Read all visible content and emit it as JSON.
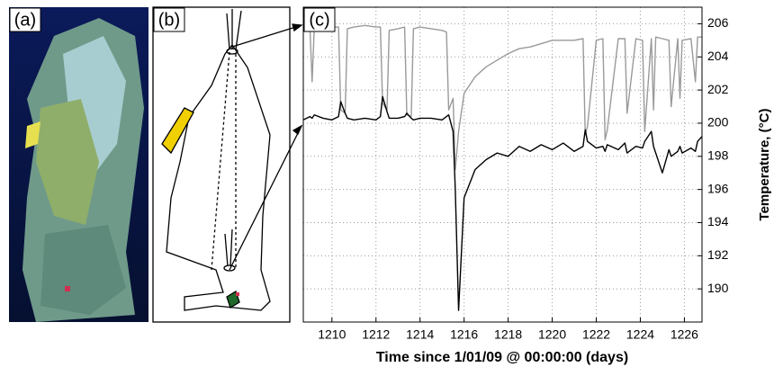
{
  "panels": [
    "(a)",
    "(b)",
    "(c)"
  ],
  "chart_data": {
    "type": "line",
    "xlabel": "Time since 1/01/09 @ 00:00:00 (days)",
    "ylabel": "Temperature, (°C)",
    "xlim": [
      1208.7,
      1226.8
    ],
    "ylim": [
      188,
      207
    ],
    "xticks": [
      1210,
      1212,
      1214,
      1216,
      1218,
      1220,
      1222,
      1224,
      1226
    ],
    "yticks": [
      190,
      192,
      194,
      196,
      198,
      200,
      202,
      204,
      206
    ],
    "grid": true,
    "x": [
      1208.7,
      1209.0,
      1209.1,
      1209.2,
      1209.6,
      1210.0,
      1210.3,
      1210.4,
      1210.6,
      1210.7,
      1211.0,
      1211.5,
      1212.0,
      1212.2,
      1212.3,
      1212.5,
      1212.6,
      1213.0,
      1213.3,
      1213.4,
      1213.6,
      1213.7,
      1214.0,
      1214.5,
      1215.0,
      1215.2,
      1215.3,
      1215.5,
      1215.6,
      1215.75,
      1216.0,
      1216.5,
      1217.0,
      1217.5,
      1218.0,
      1218.5,
      1219.0,
      1219.5,
      1220.0,
      1220.5,
      1221.0,
      1221.4,
      1221.5,
      1221.6,
      1222.0,
      1222.3,
      1222.4,
      1222.5,
      1223.0,
      1223.3,
      1223.4,
      1223.8,
      1224.1,
      1224.2,
      1224.5,
      1224.6,
      1224.7,
      1225.0,
      1225.3,
      1225.4,
      1225.7,
      1225.8,
      1225.9,
      1226.3,
      1226.5,
      1226.6,
      1226.8
    ],
    "series": [
      {
        "color": "#9a9a9a",
        "values": [
          205.8,
          205.8,
          202.5,
          205.8,
          205.9,
          205.8,
          205.8,
          200.8,
          200.6,
          205.7,
          205.8,
          205.9,
          205.8,
          205.8,
          201.2,
          200.8,
          205.6,
          205.7,
          205.8,
          200.5,
          200.4,
          205.7,
          205.8,
          205.7,
          205.6,
          205.5,
          200.8,
          201.5,
          197.2,
          199.5,
          201.8,
          202.8,
          203.4,
          203.8,
          204.2,
          204.5,
          204.6,
          204.8,
          205.0,
          205.0,
          205.0,
          205.1,
          199.3,
          199.8,
          205.0,
          205.1,
          199.0,
          199.6,
          205.1,
          205.1,
          200.6,
          205.1,
          205.0,
          199.5,
          205.1,
          200.8,
          205.2,
          205.1,
          205.0,
          201.0,
          205.1,
          201.5,
          205.0,
          205.1,
          202.5,
          205.2,
          205.2
        ]
      },
      {
        "color": "#000000",
        "values": [
          200.2,
          200.4,
          200.3,
          200.5,
          200.3,
          200.2,
          200.4,
          201.3,
          200.6,
          200.3,
          200.2,
          200.3,
          200.2,
          200.4,
          201.6,
          200.7,
          200.3,
          200.3,
          200.4,
          200.6,
          200.3,
          200.2,
          200.3,
          200.3,
          200.2,
          200.4,
          200.5,
          199.5,
          196.0,
          188.7,
          195.5,
          197.2,
          197.8,
          198.2,
          198.0,
          198.6,
          198.3,
          198.7,
          198.4,
          198.8,
          198.3,
          198.6,
          199.6,
          198.9,
          198.5,
          198.6,
          198.3,
          198.7,
          198.4,
          198.8,
          198.2,
          198.6,
          198.5,
          198.9,
          199.5,
          198.6,
          198.2,
          197.0,
          198.4,
          198.0,
          198.3,
          198.6,
          198.2,
          198.5,
          198.3,
          198.9,
          199.2
        ]
      }
    ]
  }
}
